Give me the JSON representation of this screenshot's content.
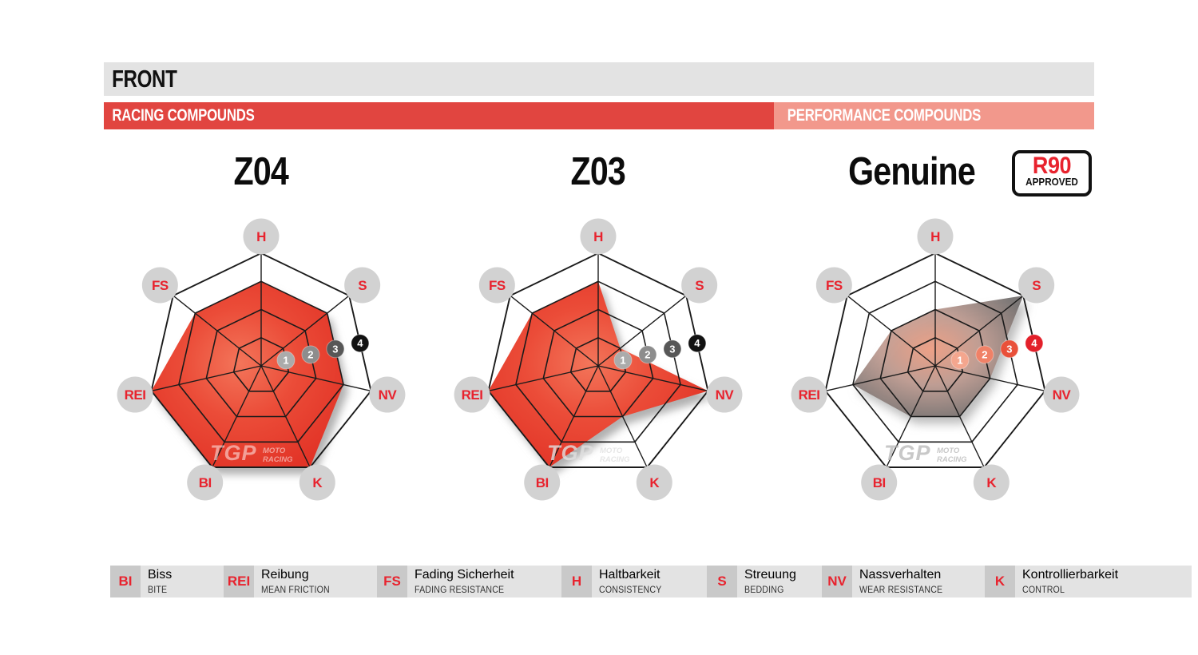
{
  "header": {
    "title": "FRONT"
  },
  "category_bars": {
    "racing_label": "RACING COMPOUNDS",
    "performance_label": "PERFORMANCE COMPOUNDS"
  },
  "r90_badge": {
    "top": "R90",
    "bottom": "APPROVED"
  },
  "watermark": {
    "logo": "TGP",
    "moto": "MOTO",
    "racing": "RACING"
  },
  "radar": {
    "axes": [
      "H",
      "S",
      "NV",
      "K",
      "BI",
      "REI",
      "FS"
    ],
    "scale_labels": [
      "1",
      "2",
      "3",
      "4"
    ],
    "scale_min": 0,
    "scale_max": 4
  },
  "chart_data": [
    {
      "type": "radar",
      "title": "Z04",
      "category": "RACING COMPOUNDS",
      "axes": [
        "H",
        "S",
        "NV",
        "K",
        "BI",
        "REI",
        "FS"
      ],
      "values": [
        3,
        3,
        3,
        4,
        4,
        4,
        3
      ],
      "scale": [
        0,
        4
      ],
      "style": "red"
    },
    {
      "type": "radar",
      "title": "Z03",
      "category": "RACING COMPOUNDS",
      "axes": [
        "H",
        "S",
        "NV",
        "K",
        "BI",
        "REI",
        "FS"
      ],
      "values": [
        3,
        1,
        4,
        2,
        4,
        4,
        3
      ],
      "scale": [
        0,
        4
      ],
      "style": "red"
    },
    {
      "type": "radar",
      "title": "Genuine",
      "category": "PERFORMANCE COMPOUNDS",
      "badge": "R90 APPROVED",
      "axes": [
        "H",
        "S",
        "NV",
        "K",
        "BI",
        "REI",
        "FS"
      ],
      "values": [
        2,
        4,
        2,
        2,
        2,
        3,
        2
      ],
      "scale": [
        0,
        4
      ],
      "style": "gray"
    }
  ],
  "legend": {
    "items": [
      {
        "abbr": "BI",
        "de": "Biss",
        "en": "BITE"
      },
      {
        "abbr": "REI",
        "de": "Reibung",
        "en": "MEAN FRICTION"
      },
      {
        "abbr": "FS",
        "de": "Fading Sicherheit",
        "en": "FADING RESISTANCE"
      },
      {
        "abbr": "H",
        "de": "Haltbarkeit",
        "en": "CONSISTENCY"
      },
      {
        "abbr": "S",
        "de": "Streuung",
        "en": "BEDDING"
      },
      {
        "abbr": "NV",
        "de": "Nassverhalten",
        "en": "WEAR RESISTANCE"
      },
      {
        "abbr": "K",
        "de": "Kontrollierbarkeit",
        "en": "CONTROL"
      }
    ]
  },
  "colors": {
    "brand_red_text": "#e8232e",
    "racing_bar": "#e14540",
    "performance_bar": "#f2988c",
    "header_bar_bg": "#e3e3e3",
    "legend_square_bg": "#c9c9c9",
    "legend_strip_bg": "#e3e3e3",
    "grid_line": "#1b1b1b",
    "axis_label_circle": "#d2d2d2",
    "marker_gray_scale": [
      "#ababab",
      "#8d8d8d",
      "#575757",
      "#111111"
    ],
    "marker_red_scale": [
      "#f4a68e",
      "#f08167",
      "#e9503a",
      "#e3202a"
    ],
    "red_fill_stops": [
      "#f3755a",
      "#eb4c38",
      "#e23427"
    ],
    "gray_fill_stops": [
      "#f0a085",
      "#bf9c92",
      "#757170"
    ]
  }
}
